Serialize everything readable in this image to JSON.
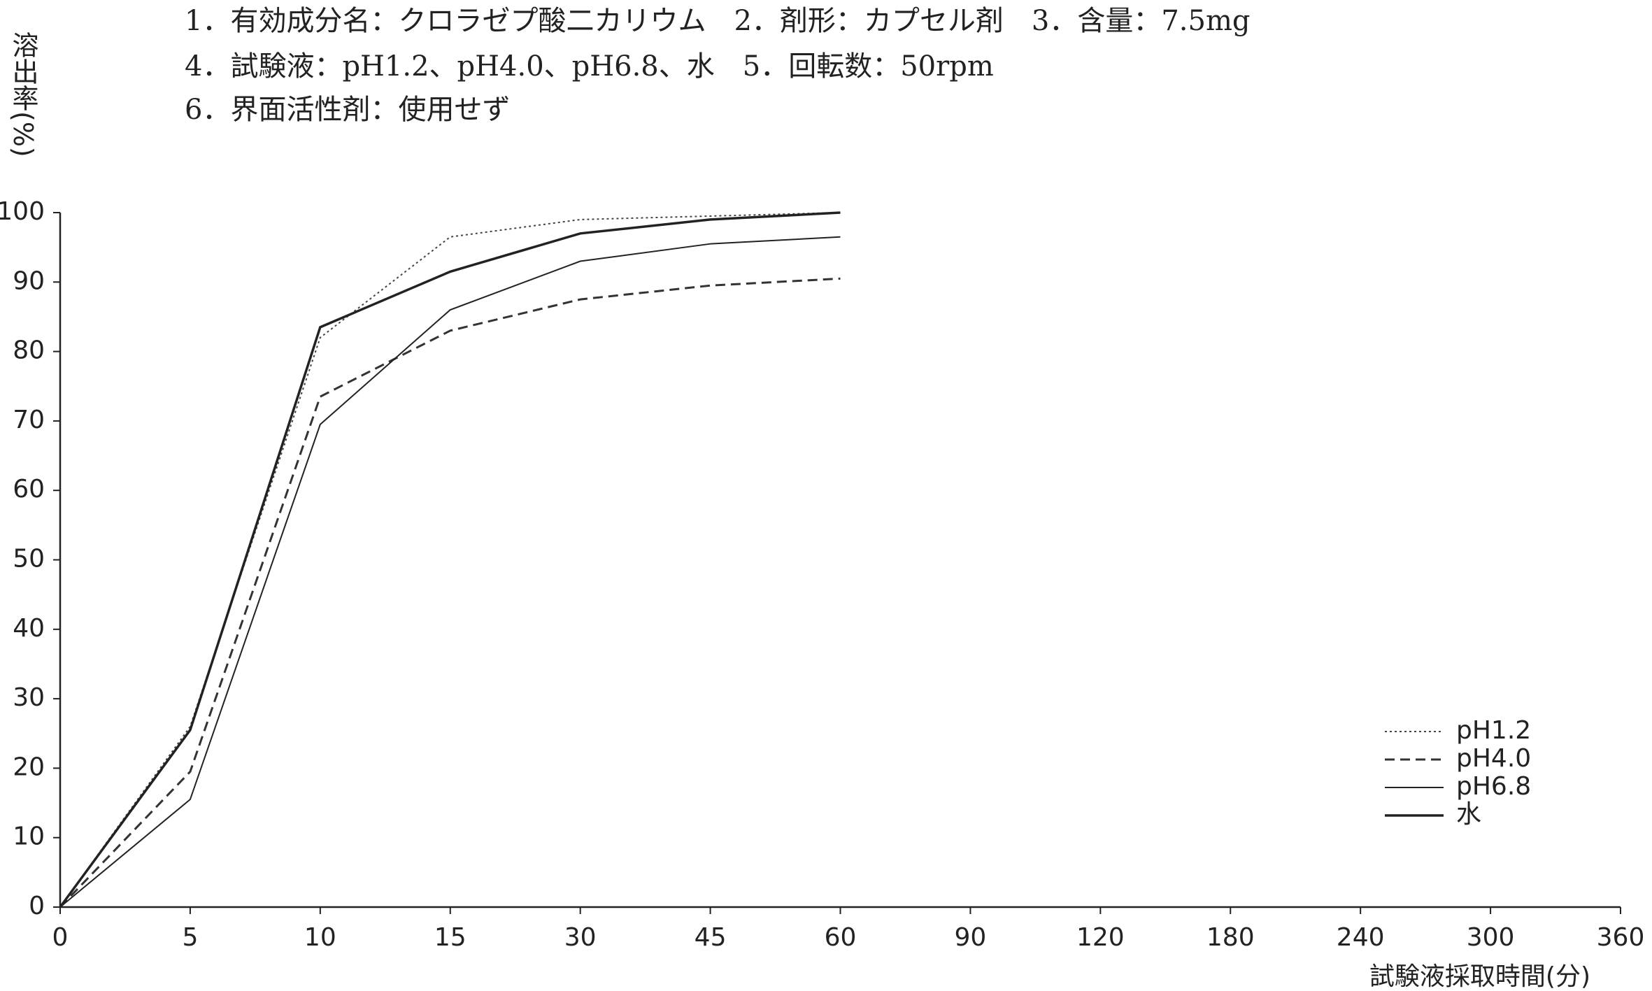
{
  "chart_data": {
    "type": "line",
    "title_lines": [
      "1．有効成分名：クロラゼプ酸二カリウム　2．剤形：カプセル剤　3．含量：7.5mg",
      "4．試験液：pH1.2、pH4.0、pH6.8、水　5．回転数：50rpm",
      "6．界面活性剤：使用せず"
    ],
    "y_label": "溶出率(%)",
    "x_label": "試験液採取時間(分)",
    "categories": [
      "0",
      "5",
      "10",
      "15",
      "30",
      "45",
      "60",
      "90",
      "120",
      "180",
      "240",
      "300",
      "360"
    ],
    "series": [
      {
        "name": "pH1.2",
        "color": "#444",
        "style": "dotted",
        "values": [
          0,
          26,
          82,
          96.5,
          99,
          99.5,
          100,
          null,
          null,
          null,
          null,
          null,
          null
        ]
      },
      {
        "name": "pH4.0",
        "color": "#333",
        "style": "dashed",
        "values": [
          0,
          19.5,
          73.5,
          83,
          87.5,
          89.5,
          90.5,
          null,
          null,
          null,
          null,
          null,
          null
        ]
      },
      {
        "name": "pH6.8",
        "color": "#222",
        "style": "thin",
        "values": [
          0,
          15.5,
          69.5,
          86,
          93,
          95.5,
          96.5,
          null,
          null,
          null,
          null,
          null,
          null
        ]
      },
      {
        "name": "水",
        "color": "#222",
        "style": "solid",
        "values": [
          0,
          25.5,
          83.5,
          91.5,
          97,
          99,
          100,
          null,
          null,
          null,
          null,
          null,
          null
        ]
      }
    ],
    "ylim": [
      0,
      100
    ],
    "yticks": [
      0,
      10,
      20,
      30,
      40,
      50,
      60,
      70,
      80,
      90,
      100
    ],
    "grid": false,
    "legend": "lower right"
  }
}
